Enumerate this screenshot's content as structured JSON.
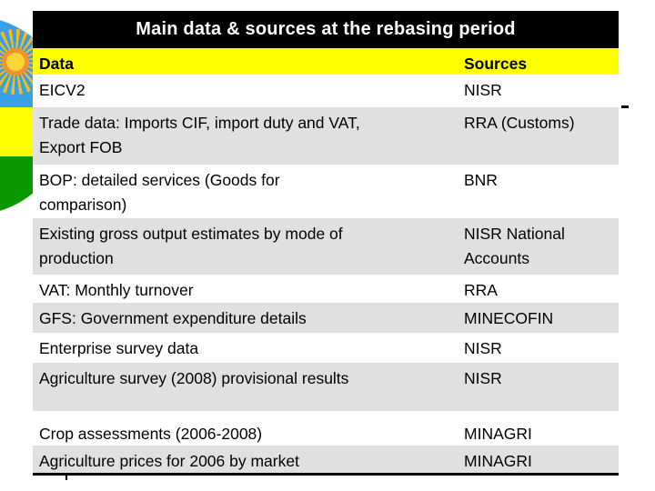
{
  "slide": {
    "title": "Main data & sources at the rebasing period",
    "columns": {
      "data": "Data",
      "sources": "Sources"
    },
    "rows": [
      {
        "data": "EICV2",
        "source": "NISR",
        "shade": "white"
      },
      {
        "data": "Trade data: Imports CIF, import duty and VAT,\nExport FOB",
        "source": "RRA (Customs)",
        "shade": "gray"
      },
      {
        "data": "BOP: detailed services (Goods for\ncomparison)",
        "source": "BNR",
        "shade": "white"
      },
      {
        "data": "Existing gross output estimates by mode of\nproduction",
        "source": "NISR National\nAccounts",
        "shade": "gray"
      },
      {
        "data": "VAT: Monthly turnover",
        "source": "RRA",
        "shade": "white"
      },
      {
        "data": "GFS: Government expenditure details",
        "source": "MINECOFIN",
        "shade": "gray"
      },
      {
        "data": "Enterprise survey data",
        "source": "NISR",
        "shade": "white"
      },
      {
        "data": "Agriculture survey (2008) provisional results",
        "source": "NISR",
        "shade": "gray"
      },
      {
        "data": "Crop assessments (2006-2008)",
        "source": "MINAGRI",
        "shade": "white"
      },
      {
        "data": "Agriculture prices for 2006 by market",
        "source": "MINAGRI",
        "shade": "gray"
      }
    ],
    "colors": {
      "title_bar_bg": "#000000",
      "title_text": "#FFFFFF",
      "header_bg": "#FFFF00",
      "row_white": "#FFFFFF",
      "row_gray": "#E0E0E0",
      "table_bottom_border": "#000000"
    },
    "decoration": {
      "flag_blue": "#3BA1E6",
      "flag_yellow": "#FFFF00",
      "flag_green": "#0C9800",
      "sun_ray": "#FCBA12",
      "sun_ring": "#F5922F",
      "sun_core": "#FFD437"
    }
  }
}
